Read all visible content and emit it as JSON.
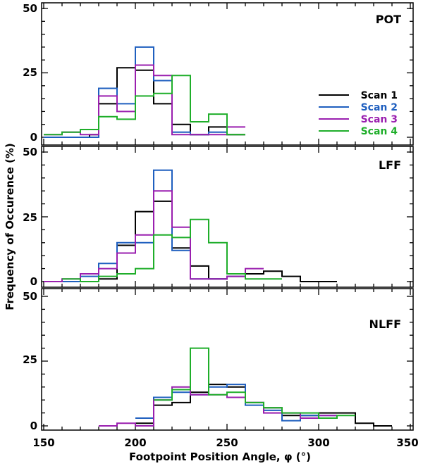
{
  "chart_data": {
    "type": "line",
    "style": "step-histogram",
    "xlabel": "Footpoint Position Angle, φ (°)",
    "ylabel": "Frequency of Occurence (%)",
    "xlim": [
      150,
      350
    ],
    "ylim": [
      -3,
      50
    ],
    "x_ticks": [
      "150",
      "200",
      "250",
      "300",
      "350"
    ],
    "y_ticks": [
      "0",
      "25",
      "50"
    ],
    "legend": {
      "position": "right-middle of top panel",
      "entries": [
        "Scan 1",
        "Scan 2",
        "Scan 3",
        "Scan 4"
      ]
    },
    "colors": {
      "Scan 1": "#000000",
      "Scan 2": "#1f5fbf",
      "Scan 3": "#9a1faf",
      "Scan 4": "#1fae2a"
    },
    "bin_edges": [
      150,
      155,
      160,
      165,
      170,
      175,
      180,
      185,
      190,
      195,
      200,
      205,
      210,
      215,
      220,
      225,
      230,
      235,
      240,
      245,
      250,
      255,
      260,
      265,
      270,
      275,
      280,
      285,
      290,
      295,
      300,
      305,
      310,
      315,
      320,
      325,
      330,
      335,
      340
    ],
    "panels": [
      {
        "label": "POT",
        "series": [
          {
            "name": "Scan 1",
            "values": [
              0,
              0,
              0,
              0,
              0,
              1,
              13,
              13,
              27,
              27,
              26,
              26,
              13,
              13,
              5,
              5,
              1,
              1,
              4,
              4,
              1,
              1,
              null,
              null,
              null,
              null,
              null,
              null,
              null,
              null,
              null,
              null,
              null,
              null,
              null,
              null,
              null,
              null
            ]
          },
          {
            "name": "Scan 2",
            "values": [
              0,
              0,
              0,
              0,
              0,
              0,
              19,
              19,
              13,
              13,
              35,
              35,
              22,
              22,
              2,
              2,
              1,
              1,
              2,
              2,
              null,
              null,
              null,
              null,
              null,
              null,
              null,
              null,
              null,
              null,
              null,
              null,
              null,
              null,
              null,
              null,
              null,
              null
            ]
          },
          {
            "name": "Scan 3",
            "values": [
              1,
              1,
              2,
              2,
              1,
              1,
              16,
              16,
              10,
              10,
              28,
              28,
              24,
              24,
              1,
              1,
              1,
              1,
              1,
              1,
              4,
              4,
              null,
              null,
              null,
              null,
              null,
              null,
              null,
              null,
              null,
              null,
              null,
              null,
              null,
              null,
              null,
              null
            ]
          },
          {
            "name": "Scan 4",
            "values": [
              1,
              1,
              2,
              2,
              3,
              3,
              8,
              8,
              7,
              7,
              16,
              16,
              17,
              17,
              24,
              24,
              6,
              6,
              9,
              9,
              1,
              1,
              null,
              null,
              null,
              null,
              null,
              null,
              null,
              null,
              null,
              null,
              null,
              null,
              null,
              null,
              null,
              null
            ]
          }
        ]
      },
      {
        "label": "LFF",
        "series": [
          {
            "name": "Scan 1",
            "values": [
              null,
              null,
              0,
              0,
              0,
              0,
              1,
              1,
              14,
              14,
              27,
              27,
              31,
              31,
              13,
              13,
              6,
              6,
              1,
              1,
              2,
              2,
              3,
              3,
              4,
              4,
              2,
              2,
              0,
              0,
              0,
              0,
              null,
              null,
              null,
              null,
              null,
              null
            ]
          },
          {
            "name": "Scan 2",
            "values": [
              null,
              null,
              0,
              0,
              2,
              2,
              7,
              7,
              15,
              15,
              15,
              15,
              43,
              43,
              12,
              12,
              1,
              1,
              1,
              1,
              2,
              2,
              null,
              null,
              null,
              null,
              null,
              null,
              null,
              null,
              null,
              null,
              null,
              null,
              null,
              null,
              null,
              null
            ]
          },
          {
            "name": "Scan 3",
            "values": [
              0,
              0,
              1,
              1,
              3,
              3,
              5,
              5,
              11,
              11,
              18,
              18,
              35,
              35,
              21,
              21,
              1,
              1,
              1,
              1,
              2,
              2,
              5,
              5,
              null,
              null,
              null,
              null,
              null,
              null,
              null,
              null,
              null,
              null,
              null,
              null,
              null,
              null
            ]
          },
          {
            "name": "Scan 4",
            "values": [
              null,
              null,
              1,
              1,
              0,
              0,
              2,
              2,
              3,
              3,
              5,
              5,
              18,
              18,
              17,
              17,
              24,
              24,
              15,
              15,
              3,
              3,
              1,
              1,
              1,
              1,
              null,
              null,
              null,
              null,
              null,
              null,
              null,
              null,
              null,
              null,
              null,
              null
            ]
          }
        ]
      },
      {
        "label": "NLFF",
        "series": [
          {
            "name": "Scan 1",
            "values": [
              null,
              null,
              null,
              null,
              null,
              null,
              null,
              null,
              null,
              null,
              1,
              1,
              8,
              8,
              9,
              9,
              13,
              13,
              16,
              16,
              15,
              15,
              9,
              9,
              7,
              7,
              4,
              4,
              4,
              4,
              5,
              5,
              5,
              5,
              1,
              1,
              0,
              0
            ]
          },
          {
            "name": "Scan 2",
            "values": [
              null,
              null,
              null,
              null,
              null,
              null,
              null,
              null,
              null,
              null,
              3,
              3,
              11,
              11,
              13,
              13,
              12,
              12,
              15,
              15,
              16,
              16,
              8,
              8,
              6,
              6,
              2,
              2,
              4,
              4,
              4,
              4,
              null,
              null,
              null,
              null,
              null,
              null
            ]
          },
          {
            "name": "Scan 3",
            "values": [
              null,
              null,
              null,
              null,
              null,
              null,
              0,
              0,
              1,
              1,
              0,
              0,
              10,
              10,
              15,
              15,
              12,
              12,
              12,
              12,
              11,
              11,
              9,
              9,
              5,
              5,
              5,
              5,
              3,
              3,
              4,
              4,
              null,
              null,
              null,
              null,
              null,
              null
            ]
          },
          {
            "name": "Scan 4",
            "values": [
              null,
              null,
              null,
              null,
              null,
              null,
              null,
              null,
              null,
              null,
              null,
              null,
              10,
              10,
              14,
              14,
              30,
              30,
              12,
              12,
              13,
              13,
              9,
              9,
              7,
              7,
              5,
              5,
              5,
              5,
              3,
              3,
              4,
              4,
              null,
              null,
              null,
              null
            ]
          }
        ]
      }
    ]
  }
}
